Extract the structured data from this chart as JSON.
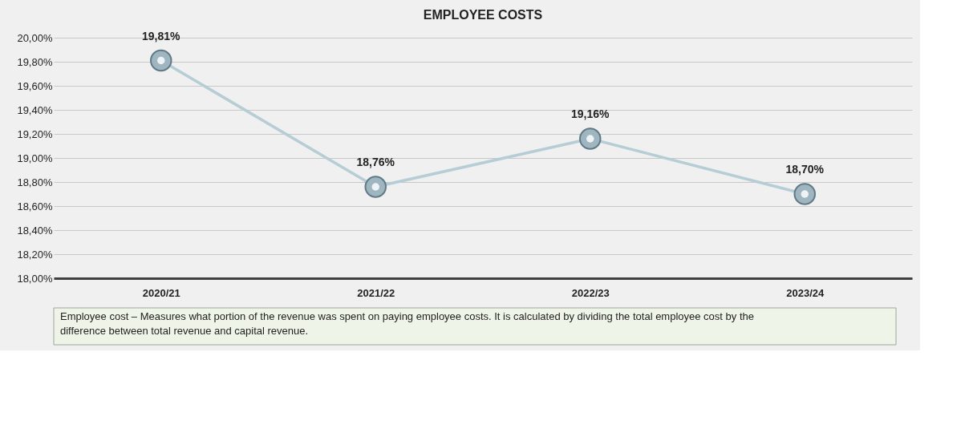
{
  "chart_data": {
    "type": "line",
    "title": "EMPLOYEE COSTS",
    "categories": [
      "2020/21",
      "2021/22",
      "2022/23",
      "2023/24"
    ],
    "series": [
      {
        "color": "#b7cdd6",
        "values": [
          19.81,
          18.76,
          19.16,
          18.7
        ],
        "value_labels": [
          "19,81%",
          "18,76%",
          "19,16%",
          "18,70%"
        ]
      }
    ],
    "ylim": [
      18.0,
      20.0
    ],
    "yticks": [
      {
        "value": 18.0,
        "label": "18,00%"
      },
      {
        "value": 18.2,
        "label": "18,20%"
      },
      {
        "value": 18.4,
        "label": "18,40%"
      },
      {
        "value": 18.6,
        "label": "18,60%"
      },
      {
        "value": 18.8,
        "label": "18,80%"
      },
      {
        "value": 19.0,
        "label": "19,00%"
      },
      {
        "value": 19.2,
        "label": "19,20%"
      },
      {
        "value": 19.4,
        "label": "19,40%"
      },
      {
        "value": 19.6,
        "label": "19,60%"
      },
      {
        "value": 19.8,
        "label": "19,80%"
      },
      {
        "value": 20.0,
        "label": "20,00%"
      }
    ],
    "grid": "y",
    "marker": "circle",
    "line_style": "solid",
    "annotations": [
      "Employee cost – Measures what portion of the revenue was spent on paying employee costs. It is calculated by dividing the total employee cost by the difference between total revenue and capital revenue."
    ]
  }
}
